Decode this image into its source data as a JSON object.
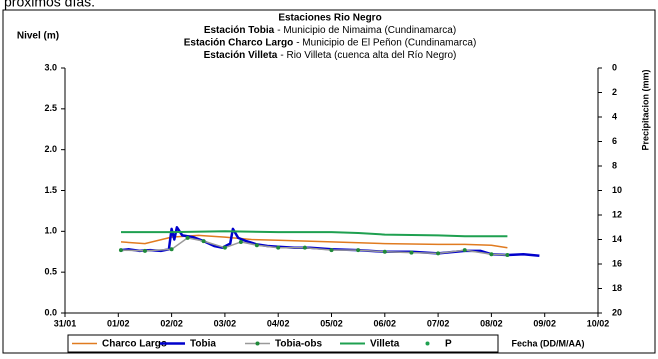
{
  "caption": "próximos días.",
  "chart_data": {
    "type": "line",
    "title": "Estaciones Rio Negro",
    "subtitles": [
      {
        "station": "Estación Tobia",
        "desc": "- Municipio de Nimaima (Cundinamarca)"
      },
      {
        "station": "Estación Charco Largo",
        "desc": "- Municipio de El Peñon (Cundinamarca)"
      },
      {
        "station": "Estación Villeta",
        "desc": "-  Rio Villeta (cuenca alta del Río Negro)"
      }
    ],
    "y_label": "Nivel (m)",
    "y2_label": "Precipitacion (mm)",
    "x_label": "Fecha (DD/M/AA)",
    "xlim": [
      0,
      10
    ],
    "xticks": [
      {
        "value": 0,
        "label": "31/01"
      },
      {
        "value": 1,
        "label": "01/02"
      },
      {
        "value": 2,
        "label": "02/02"
      },
      {
        "value": 3,
        "label": "03/02"
      },
      {
        "value": 4,
        "label": "04/02"
      },
      {
        "value": 5,
        "label": "05/02"
      },
      {
        "value": 6,
        "label": "06/02"
      },
      {
        "value": 7,
        "label": "07/02"
      },
      {
        "value": 8,
        "label": "08/02"
      },
      {
        "value": 9,
        "label": "09/02"
      },
      {
        "value": 10,
        "label": "10/02"
      }
    ],
    "ylim": [
      0,
      3
    ],
    "yticks": [
      {
        "value": 0,
        "label": "0.0"
      },
      {
        "value": 0.5,
        "label": "0.5"
      },
      {
        "value": 1,
        "label": "1.0"
      },
      {
        "value": 1.5,
        "label": "1.5"
      },
      {
        "value": 2,
        "label": "2.0"
      },
      {
        "value": 2.5,
        "label": "2.5"
      },
      {
        "value": 3,
        "label": "3.0"
      }
    ],
    "y2lim": [
      20,
      0
    ],
    "y2ticks": [
      0,
      2,
      4,
      6,
      8,
      10,
      12,
      14,
      16,
      18,
      20
    ],
    "grid": false,
    "legend": "bottom",
    "series": [
      {
        "name": "Charco Largo",
        "color": "#e07b20",
        "width": 1.5,
        "line": true,
        "marker": false,
        "x": [
          1.05,
          1.5,
          2.0,
          2.5,
          3.0,
          3.5,
          4,
          5,
          6,
          7,
          7.5,
          8.0,
          8.3
        ],
        "values": [
          0.87,
          0.85,
          0.93,
          0.95,
          0.93,
          0.9,
          0.89,
          0.87,
          0.85,
          0.84,
          0.84,
          0.83,
          0.8
        ]
      },
      {
        "name": "Tobia",
        "color": "#0000cc",
        "width": 2.5,
        "line": true,
        "marker": false,
        "x": [
          1.05,
          1.2,
          1.4,
          1.6,
          1.8,
          1.95,
          2.0,
          2.05,
          2.1,
          2.2,
          2.4,
          2.6,
          2.8,
          2.95,
          3.1,
          3.15,
          3.25,
          3.4,
          3.6,
          3.8,
          4,
          4.3,
          4.6,
          5,
          5.5,
          6,
          6.5,
          7,
          7.5,
          7.8,
          8,
          8.3,
          8.6,
          8.9
        ],
        "values": [
          0.77,
          0.78,
          0.76,
          0.77,
          0.76,
          0.78,
          1.03,
          0.9,
          1.05,
          0.95,
          0.93,
          0.88,
          0.82,
          0.8,
          0.85,
          1.03,
          0.92,
          0.88,
          0.84,
          0.82,
          0.81,
          0.8,
          0.8,
          0.78,
          0.77,
          0.75,
          0.75,
          0.73,
          0.76,
          0.76,
          0.72,
          0.71,
          0.72,
          0.7
        ]
      },
      {
        "name": "Tobia-obs",
        "color": "#999999",
        "marker_color": "#1f8a3a",
        "width": 1.5,
        "line": true,
        "marker": true,
        "x": [
          1.05,
          1.5,
          2,
          2.3,
          2.6,
          3,
          3.3,
          3.6,
          4,
          4.5,
          5,
          5.5,
          6,
          6.5,
          7,
          7.5,
          8,
          8.3
        ],
        "values": [
          0.77,
          0.76,
          0.78,
          0.92,
          0.88,
          0.8,
          0.87,
          0.83,
          0.8,
          0.8,
          0.77,
          0.77,
          0.75,
          0.74,
          0.73,
          0.77,
          0.72,
          0.71
        ]
      },
      {
        "name": "Villeta",
        "color": "#1fa050",
        "width": 2,
        "line": true,
        "marker": false,
        "x": [
          1.05,
          2,
          3,
          4,
          5,
          5.5,
          6,
          7,
          7.5,
          8.3
        ],
        "values": [
          0.99,
          0.99,
          1.0,
          0.99,
          0.99,
          0.98,
          0.96,
          0.95,
          0.94,
          0.94
        ]
      },
      {
        "name": "P",
        "color": "#1fa050",
        "marker_color": "#1fa050",
        "width": 0,
        "line": false,
        "marker": true,
        "axis": "y2",
        "x": [],
        "values": []
      }
    ]
  }
}
